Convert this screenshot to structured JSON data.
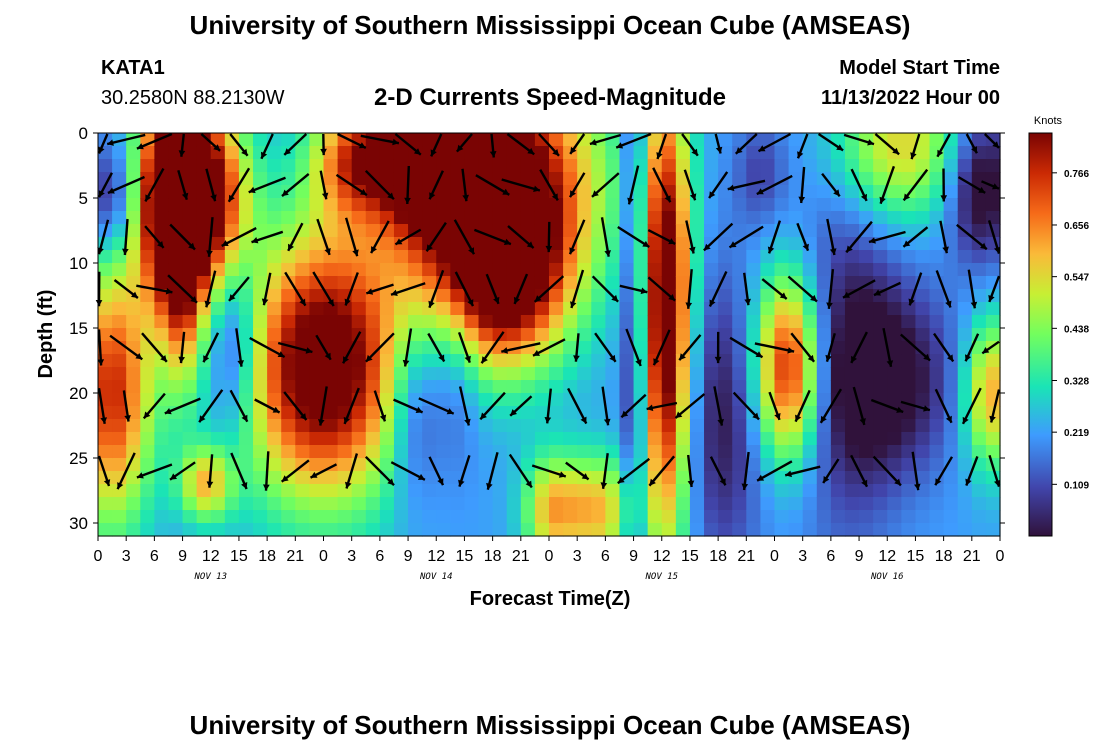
{
  "header": {
    "title": "University of Southern Mississippi Ocean Cube (AMSEAS)",
    "station_id": "KATA1",
    "coords": "30.2580N  88.2130W",
    "plot_name": "2-D Currents Speed-Magnitude",
    "model_label": "Model Start Time",
    "model_time": "11/13/2022 Hour 00"
  },
  "footer": {
    "title_repeat": "University of Southern Mississippi Ocean Cube (AMSEAS)"
  },
  "colors": {
    "dark_red": "#7a0403",
    "red": "#c42503",
    "orange": "#f8a42d",
    "yellow": "#e4e23a",
    "green": "#6ffd5e",
    "cyan": "#23c4e8",
    "blue": "#3a71e6",
    "navy": "#30123b"
  },
  "chart_data": {
    "type": "heatmap",
    "xlabel": "Forecast Time(Z)",
    "ylabel": "Depth (ft)",
    "x_ticks": [
      "0",
      "3",
      "6",
      "9",
      "12",
      "15",
      "18",
      "21",
      "0",
      "3",
      "6",
      "9",
      "12",
      "15",
      "18",
      "21",
      "0",
      "3",
      "6",
      "9",
      "12",
      "15",
      "18",
      "21",
      "0",
      "3",
      "6",
      "9",
      "12",
      "15",
      "18",
      "21",
      "0"
    ],
    "x_range_hours": [
      0,
      96
    ],
    "day_labels": [
      {
        "label": "NOV 13",
        "hour": 12
      },
      {
        "label": "NOV 14",
        "hour": 36
      },
      {
        "label": "NOV 15",
        "hour": 60
      },
      {
        "label": "NOV 16",
        "hour": 84
      }
    ],
    "y_ticks": [
      0,
      5,
      10,
      15,
      20,
      25,
      30
    ],
    "y_range_ft": [
      0,
      31
    ],
    "colorbar": {
      "unit": "Knots",
      "ticks": [
        "0.766",
        "0.656",
        "0.547",
        "0.438",
        "0.328",
        "0.219",
        "0.109"
      ],
      "range": [
        0.0,
        0.85
      ]
    },
    "vector_depths_ft": [
      0.5,
      4,
      8,
      12,
      16.5,
      21,
      26
    ],
    "speed_blobs": [
      {
        "t": 7.5,
        "d": 5,
        "st": 2.5,
        "sd": 6,
        "v": 0.75
      },
      {
        "t": 9,
        "d": 12,
        "st": 1.5,
        "sd": 6,
        "v": 0.3
      },
      {
        "t": 11.5,
        "d": 5,
        "st": 3,
        "sd": 5,
        "v": 0.7
      },
      {
        "t": 1.5,
        "d": 20,
        "st": 3,
        "sd": 7,
        "v": 0.55
      },
      {
        "t": 24,
        "d": 18,
        "st": 6,
        "sd": 7,
        "v": 0.75
      },
      {
        "t": 11.5,
        "d": 27,
        "st": 2,
        "sd": 2,
        "v": 0.35
      },
      {
        "t": 41,
        "d": 3,
        "st": 8,
        "sd": 6,
        "v": 0.75
      },
      {
        "t": 43,
        "d": 11,
        "st": 5,
        "sd": 5,
        "v": 0.7
      },
      {
        "t": 36,
        "d": 2,
        "st": 4,
        "sd": 3,
        "v": 0.65
      },
      {
        "t": 60.5,
        "d": 14,
        "st": 1.8,
        "sd": 12,
        "v": 0.75
      },
      {
        "t": 73.5,
        "d": 18,
        "st": 2.5,
        "sd": 5,
        "v": 0.6
      },
      {
        "t": 27,
        "d": 2,
        "st": 3,
        "sd": 3,
        "v": 0.35
      },
      {
        "t": 85,
        "d": 1,
        "st": 5,
        "sd": 4,
        "v": 0.35
      },
      {
        "t": 95,
        "d": 20,
        "st": 2,
        "sd": 4,
        "v": 0.4
      },
      {
        "t": 53,
        "d": 29,
        "st": 3,
        "sd": 3,
        "v": 0.38
      },
      {
        "t": 48,
        "d": 29,
        "st": 2,
        "sd": 3,
        "v": 0.3
      },
      {
        "t": 14.5,
        "d": 16,
        "st": 2,
        "sd": 5,
        "v": -0.25
      },
      {
        "t": 1.5,
        "d": 5,
        "st": 2,
        "sd": 3,
        "v": -0.2
      },
      {
        "t": 33.5,
        "d": 21,
        "st": 2,
        "sd": 5,
        "v": -0.2
      },
      {
        "t": 38,
        "d": 17,
        "st": 2,
        "sd": 6,
        "v": -0.15
      },
      {
        "t": 57,
        "d": 8,
        "st": 1,
        "sd": 30,
        "v": -0.2
      },
      {
        "t": 66.5,
        "d": 22,
        "st": 3,
        "sd": 8,
        "v": -0.2
      },
      {
        "t": 79.5,
        "d": 16,
        "st": 4,
        "sd": 12,
        "v": -0.15
      },
      {
        "t": 84,
        "d": 19,
        "st": 5,
        "sd": 5,
        "v": -0.25
      },
      {
        "t": 94,
        "d": 4,
        "st": 2.5,
        "sd": 4,
        "v": -0.3
      },
      {
        "t": 70.5,
        "d": 3,
        "st": 2,
        "sd": 3,
        "v": -0.12
      }
    ]
  }
}
